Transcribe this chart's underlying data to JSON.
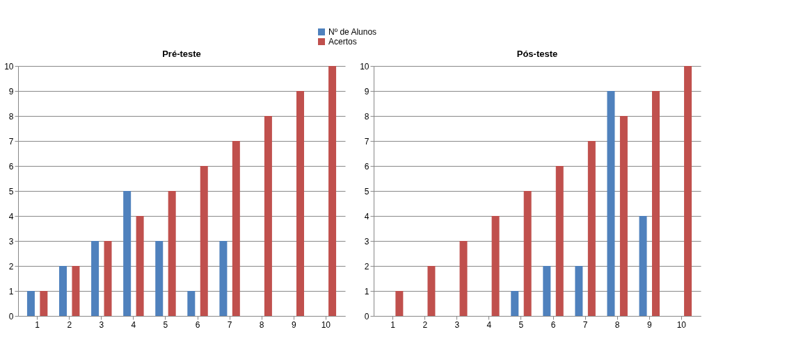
{
  "chart_data": [
    {
      "type": "bar",
      "title": "Pré-teste",
      "categories": [
        "1",
        "2",
        "3",
        "4",
        "5",
        "6",
        "7",
        "8",
        "9",
        "10"
      ],
      "series": [
        {
          "name": "Nº de Alunos",
          "color": "#4f81bd",
          "values": [
            1,
            2,
            3,
            5,
            3,
            1,
            3,
            0,
            0,
            0
          ]
        },
        {
          "name": "Acertos",
          "color": "#c0504d",
          "values": [
            1,
            2,
            3,
            4,
            5,
            6,
            7,
            8,
            9,
            10
          ]
        }
      ],
      "ylim": [
        0,
        10
      ],
      "yticks": [
        0,
        1,
        2,
        3,
        4,
        5,
        6,
        7,
        8,
        9,
        10
      ],
      "grid": "y",
      "legend": "top"
    },
    {
      "type": "bar",
      "title": "Pós-teste",
      "categories": [
        "1",
        "2",
        "3",
        "4",
        "5",
        "6",
        "7",
        "8",
        "9",
        "10"
      ],
      "series": [
        {
          "name": "Nº de Alunos",
          "color": "#4f81bd",
          "values": [
            0,
            0,
            0,
            0,
            1,
            2,
            2,
            9,
            4,
            0
          ]
        },
        {
          "name": "Acertos",
          "color": "#c0504d",
          "values": [
            1,
            2,
            3,
            4,
            5,
            6,
            7,
            8,
            9,
            10
          ]
        }
      ],
      "ylim": [
        0,
        10
      ],
      "yticks": [
        0,
        1,
        2,
        3,
        4,
        5,
        6,
        7,
        8,
        9,
        10
      ],
      "grid": "y"
    }
  ]
}
